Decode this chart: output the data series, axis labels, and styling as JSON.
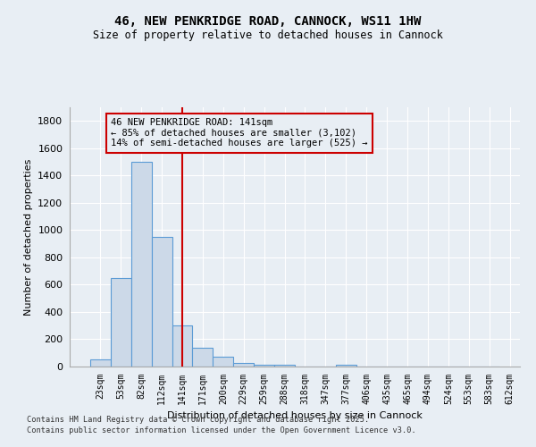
{
  "title1": "46, NEW PENKRIDGE ROAD, CANNOCK, WS11 1HW",
  "title2": "Size of property relative to detached houses in Cannock",
  "xlabel": "Distribution of detached houses by size in Cannock",
  "ylabel": "Number of detached properties",
  "bin_labels": [
    "23sqm",
    "53sqm",
    "82sqm",
    "112sqm",
    "141sqm",
    "171sqm",
    "200sqm",
    "229sqm",
    "259sqm",
    "288sqm",
    "318sqm",
    "347sqm",
    "377sqm",
    "406sqm",
    "435sqm",
    "465sqm",
    "494sqm",
    "524sqm",
    "553sqm",
    "583sqm",
    "612sqm"
  ],
  "bar_heights": [
    50,
    650,
    1500,
    950,
    300,
    140,
    70,
    25,
    15,
    15,
    0,
    0,
    15,
    0,
    0,
    0,
    0,
    0,
    0,
    0
  ],
  "bar_color": "#ccd9e8",
  "bar_edge_color": "#5b9bd5",
  "vline_color": "#cc0000",
  "annotation_text": "46 NEW PENKRIDGE ROAD: 141sqm\n← 85% of detached houses are smaller (3,102)\n14% of semi-detached houses are larger (525) →",
  "annotation_box_color": "#cc0000",
  "ylim": [
    0,
    1900
  ],
  "yticks": [
    0,
    200,
    400,
    600,
    800,
    1000,
    1200,
    1400,
    1600,
    1800
  ],
  "bg_color": "#e8eef4",
  "grid_color": "#ffffff",
  "footnote1": "Contains HM Land Registry data © Crown copyright and database right 2025.",
  "footnote2": "Contains public sector information licensed under the Open Government Licence v3.0."
}
